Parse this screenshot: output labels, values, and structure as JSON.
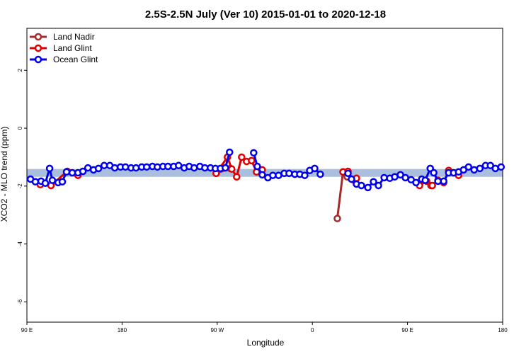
{
  "chart_data": {
    "type": "line",
    "title": "2.5S-2.5N July (Ver 10)   2015-01-01 to 2020-12-18",
    "xlabel": "Longitude",
    "ylabel": "XCO2 - MLO trend (ppm)",
    "xlim": [
      90,
      540
    ],
    "xticks": [
      {
        "value": 90,
        "label": "90 E"
      },
      {
        "value": 180,
        "label": "180"
      },
      {
        "value": 270,
        "label": "90 W"
      },
      {
        "value": 360,
        "label": "0"
      },
      {
        "value": 450,
        "label": "90 E"
      },
      {
        "value": 540,
        "label": "180"
      }
    ],
    "ylim": [
      -6.7,
      3.45
    ],
    "yticks": [
      2,
      0,
      -2,
      -4,
      -6
    ],
    "legend": "top-left",
    "band": {
      "lower": -1.68,
      "upper": -1.41,
      "color": "#a9bfdd"
    },
    "series": [
      {
        "name": "Land Nadir",
        "color": "#a52a2a",
        "x": [
          269.0,
          282.4,
          null,
          383.6,
          389.0,
          393.0,
          null,
          472.1,
          478.8
        ],
        "values": [
          -1.56,
          -1.39,
          null,
          -3.12,
          -1.51,
          -1.68,
          null,
          -1.98,
          -1.8
        ]
      },
      {
        "name": "Land Glint",
        "color": "#e00000",
        "x": [
          102.7,
          112.8,
          128.2,
          138.3,
          null,
          269.0,
          279.7,
          283.7,
          288.4,
          293.1,
          297.8,
          302.5,
          307.2,
          312.6,
          null,
          389.0,
          393.7,
          398.4,
          401.7,
          null,
          461.4,
          468.1,
          473.5,
          478.8,
          484.2,
          488.9,
          498.3
        ],
        "values": [
          -1.95,
          -1.98,
          -1.49,
          -1.63,
          null,
          -1.56,
          -1.0,
          -1.41,
          -1.68,
          -1.0,
          -1.15,
          -1.12,
          -1.51,
          -1.44,
          null,
          -1.51,
          -1.49,
          -1.78,
          -1.73,
          null,
          -1.98,
          -1.83,
          -1.98,
          -1.8,
          -1.88,
          -1.46,
          -1.63
        ]
      },
      {
        "name": "Ocean Glint",
        "color": "#0000ee",
        "x": [
          93.4,
          98.0,
          103.4,
          107.4,
          111.5,
          114.1,
          119.5,
          123.5,
          127.5,
          132.9,
          138.3,
          143.0,
          147.7,
          153.0,
          157.7,
          163.1,
          168.4,
          173.1,
          178.5,
          183.2,
          188.5,
          193.2,
          198.6,
          203.3,
          208.7,
          213.4,
          218.7,
          223.4,
          228.8,
          233.5,
          238.8,
          243.5,
          248.2,
          253.6,
          258.3,
          263.6,
          268.3,
          273.0,
          277.7,
          281.7,
          null,
          304.5,
          307.9,
          312.6,
          317.9,
          322.6,
          328.0,
          333.4,
          338.0,
          343.4,
          348.1,
          352.8,
          357.5,
          362.2,
          367.5,
          null,
          393.7,
          397.0,
          401.7,
          406.4,
          412.5,
          417.8,
          422.5,
          427.9,
          433.2,
          437.9,
          443.3,
          448.0,
          453.4,
          458.0,
          463.4,
          466.8,
          471.5,
          474.8,
          478.8,
          484.2,
          488.9,
          493.6,
          498.3,
          503.0,
          507.7,
          513.0,
          518.4,
          523.8,
          528.4,
          533.1,
          538.5
        ],
        "values": [
          -1.76,
          -1.85,
          -1.83,
          -1.9,
          -1.39,
          -1.8,
          -1.88,
          -1.85,
          -1.51,
          -1.54,
          -1.54,
          -1.49,
          -1.37,
          -1.44,
          -1.39,
          -1.29,
          -1.29,
          -1.37,
          -1.34,
          -1.34,
          -1.37,
          -1.37,
          -1.34,
          -1.34,
          -1.32,
          -1.34,
          -1.32,
          -1.32,
          -1.32,
          -1.29,
          -1.37,
          -1.32,
          -1.37,
          -1.32,
          -1.37,
          -1.37,
          -1.39,
          -1.39,
          -1.37,
          -0.83,
          null,
          -0.85,
          -1.32,
          -1.61,
          -1.71,
          -1.63,
          -1.63,
          -1.56,
          -1.56,
          -1.59,
          -1.59,
          -1.63,
          -1.46,
          -1.39,
          -1.59,
          null,
          -1.56,
          -1.76,
          -1.93,
          -1.98,
          -2.05,
          -1.85,
          -1.98,
          -1.71,
          -1.73,
          -1.68,
          -1.61,
          -1.71,
          -1.78,
          -1.88,
          -1.76,
          -1.8,
          -1.39,
          -1.54,
          -1.83,
          -1.83,
          -1.54,
          -1.54,
          -1.51,
          -1.44,
          -1.34,
          -1.44,
          -1.39,
          -1.29,
          -1.29,
          -1.39,
          -1.34
        ]
      }
    ]
  }
}
